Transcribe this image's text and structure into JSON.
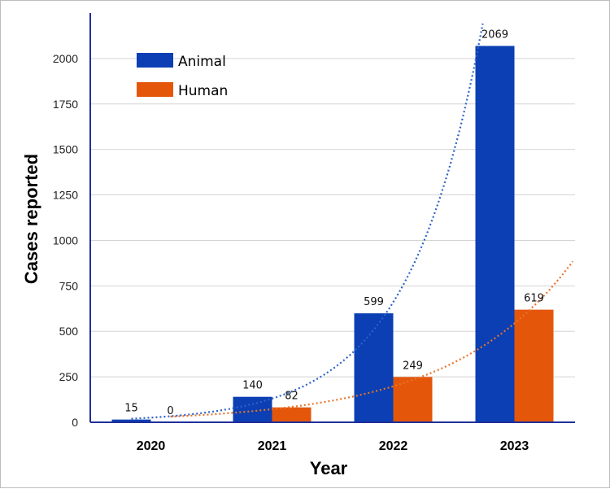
{
  "chart_data": {
    "type": "bar",
    "title": "",
    "xlabel": "Year",
    "ylabel": "Cases reported",
    "categories": [
      "2020",
      "2021",
      "2022",
      "2023"
    ],
    "ylim": [
      0,
      2250
    ],
    "yticks": [
      0,
      250,
      500,
      750,
      1000,
      1250,
      1500,
      1750,
      2000
    ],
    "series": [
      {
        "name": "Animal",
        "color": "#0b3fb3",
        "values": [
          15,
          140,
          599,
          2069
        ],
        "labels": [
          "15",
          "140",
          "599",
          "2069"
        ],
        "trendline": "exponential",
        "trend_color": "#2e62c9"
      },
      {
        "name": "Human",
        "color": "#e4570b",
        "values": [
          0,
          82,
          249,
          619
        ],
        "labels": [
          "0",
          "82",
          "249",
          "619"
        ],
        "trendline": "exponential",
        "trend_color": "#e8742a"
      }
    ],
    "legend": "top-left",
    "grid": true
  }
}
